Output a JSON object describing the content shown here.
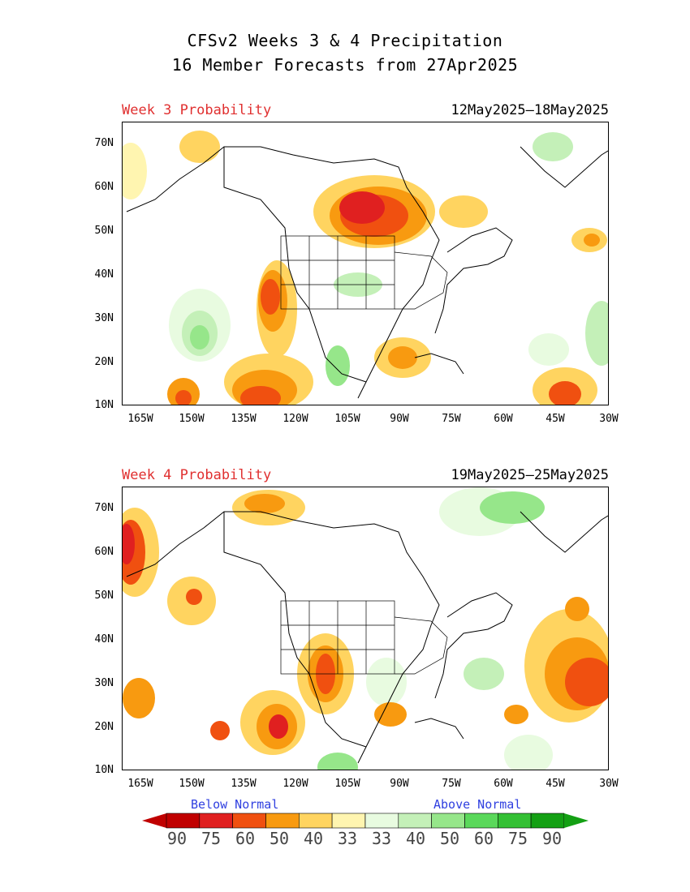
{
  "title_line1": "CFSv2 Weeks 3 & 4 Precipitation",
  "title_line2": "16 Member Forecasts from 27Apr2025",
  "panels": [
    {
      "label": "Week 3 Probability",
      "dates": "12May2025–18May2025"
    },
    {
      "label": "Week 4 Probability",
      "dates": "19May2025–25May2025"
    }
  ],
  "lat_ticks": [
    "70N",
    "60N",
    "50N",
    "40N",
    "30N",
    "20N",
    "10N"
  ],
  "lon_ticks": [
    "165W",
    "150W",
    "135W",
    "120W",
    "105W",
    "90W",
    "75W",
    "60W",
    "45W",
    "30W"
  ],
  "legend": {
    "below": "Below Normal",
    "above": "Above Normal",
    "values": [
      "90",
      "75",
      "60",
      "50",
      "40",
      "33",
      "33",
      "40",
      "50",
      "60",
      "75",
      "90"
    ]
  },
  "colors": {
    "below": [
      "#c00000",
      "#e02020",
      "#f05010",
      "#f89a10",
      "#ffd460",
      "#fff5b0"
    ],
    "above": [
      "#e8fbe0",
      "#c4f0b8",
      "#96e68a",
      "#5ad85a",
      "#34c034",
      "#14a014"
    ],
    "title_red": "#e03030",
    "legend_blue": "#3040e0"
  }
}
